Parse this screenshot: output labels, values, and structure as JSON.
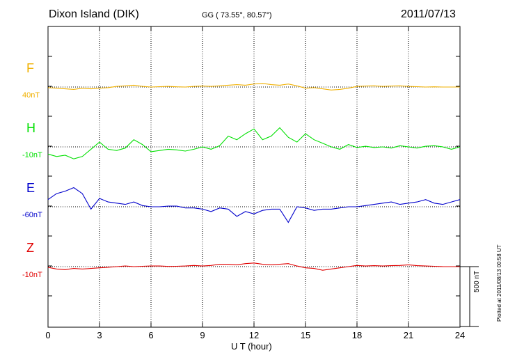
{
  "header": {
    "station": "Dixon Island (DIK)",
    "coords": "GG ( 73.55°,  80.57°)",
    "date": "2011/07/13"
  },
  "plotted_note": "Plotted at 2011/08/13 00:58 UT",
  "scale_bar_label": "500 nT",
  "colors": {
    "F": "#f0b000",
    "H": "#00e000",
    "E": "#0000cc",
    "Z": "#e00000"
  },
  "chart_data": {
    "type": "line",
    "title": "",
    "xlabel": "U T (hour)",
    "ylabel": "",
    "xlim": [
      0,
      24
    ],
    "x_ticks": [
      "0",
      "3",
      "6",
      "9",
      "12",
      "15",
      "18",
      "21",
      "24"
    ],
    "grid": true,
    "scale_nT_per_bar": 500,
    "x": [
      0,
      0.5,
      1,
      1.5,
      2,
      2.5,
      3,
      3.5,
      4,
      4.5,
      5,
      5.5,
      6,
      6.5,
      7,
      7.5,
      8,
      8.5,
      9,
      9.5,
      10,
      10.5,
      11,
      11.5,
      12,
      12.5,
      13,
      13.5,
      14,
      14.5,
      15,
      15.5,
      16,
      16.5,
      17,
      17.5,
      18,
      18.5,
      19,
      19.5,
      20,
      20.5,
      21,
      21.5,
      22,
      22.5,
      23,
      23.5,
      24
    ],
    "series": [
      {
        "name": "F",
        "baseline_label": "40nT",
        "deviation_nT": [
          -5,
          -10,
          -15,
          -20,
          -10,
          -15,
          -10,
          -5,
          5,
          10,
          15,
          5,
          0,
          3,
          5,
          2,
          0,
          5,
          8,
          5,
          10,
          15,
          20,
          15,
          25,
          30,
          20,
          15,
          25,
          10,
          -10,
          -5,
          -15,
          -25,
          -20,
          -10,
          5,
          8,
          10,
          5,
          8,
          10,
          5,
          3,
          0,
          2,
          0,
          0,
          0
        ]
      },
      {
        "name": "H",
        "baseline_label": "-10nT",
        "deviation_nT": [
          -60,
          -80,
          -70,
          -100,
          -80,
          -20,
          40,
          -20,
          -30,
          -10,
          60,
          20,
          -40,
          -30,
          -20,
          -25,
          -35,
          -20,
          0,
          -20,
          10,
          90,
          60,
          110,
          150,
          60,
          90,
          160,
          80,
          40,
          110,
          60,
          30,
          0,
          -20,
          20,
          -5,
          5,
          -5,
          0,
          -10,
          10,
          0,
          -10,
          5,
          10,
          0,
          -20,
          0
        ]
      },
      {
        "name": "E",
        "baseline_label": "-60nT",
        "deviation_nT": [
          60,
          110,
          130,
          160,
          110,
          -20,
          70,
          40,
          30,
          20,
          40,
          10,
          0,
          0,
          5,
          5,
          -10,
          -10,
          -20,
          -40,
          -10,
          -20,
          -80,
          -40,
          -60,
          -30,
          -20,
          -20,
          -130,
          0,
          -10,
          -30,
          -20,
          -20,
          -10,
          0,
          0,
          10,
          20,
          30,
          40,
          20,
          30,
          40,
          60,
          30,
          20,
          40,
          60
        ]
      },
      {
        "name": "Z",
        "baseline_label": "-10nT",
        "deviation_nT": [
          -5,
          -20,
          -25,
          -15,
          -20,
          -15,
          -10,
          -5,
          0,
          5,
          0,
          3,
          5,
          5,
          2,
          3,
          5,
          10,
          5,
          10,
          20,
          20,
          15,
          25,
          30,
          20,
          15,
          20,
          25,
          5,
          -10,
          -15,
          -30,
          -20,
          -10,
          0,
          10,
          5,
          8,
          5,
          8,
          10,
          15,
          8,
          5,
          3,
          0,
          0,
          0
        ]
      }
    ]
  }
}
